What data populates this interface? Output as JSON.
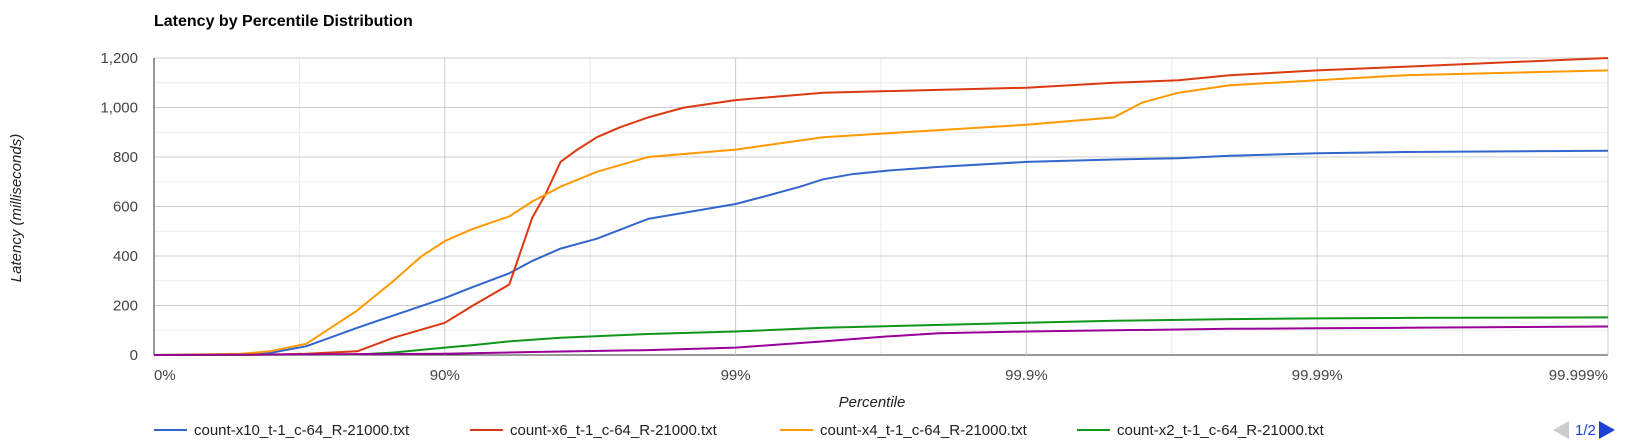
{
  "chart_data": {
    "type": "line",
    "title": "Latency by Percentile Distribution",
    "xlabel": "Percentile",
    "ylabel": "Latency (milliseconds)",
    "x_scale": "log-nines (reciprocal of 1 - percentile)",
    "x_ticks": [
      "0%",
      "90%",
      "99%",
      "99.9%",
      "99.99%",
      "99.999%"
    ],
    "xlim": [
      "0%",
      "99.999%"
    ],
    "y_ticks": [
      "0",
      "200",
      "400",
      "600",
      "800",
      "1,000",
      "1,200"
    ],
    "ylim": [
      0,
      1200
    ],
    "grid": true,
    "legend_position": "bottom",
    "series": [
      {
        "name": "count-x10_t-1_c-64_R-21000.txt",
        "color": "#3366cc",
        "x": [
          "0%",
          "50%",
          "60%",
          "70%",
          "80%",
          "85%",
          "90%",
          "92%",
          "94%",
          "95%",
          "96%",
          "97%",
          "98%",
          "99%",
          "99.2%",
          "99.4%",
          "99.5%",
          "99.6%",
          "99.7%",
          "99.8%",
          "99.9%",
          "99.95%",
          "99.97%",
          "99.98%",
          "99.99%",
          "99.995%",
          "99.999%"
        ],
        "y": [
          0,
          2,
          8,
          35,
          110,
          160,
          230,
          275,
          330,
          380,
          430,
          470,
          550,
          610,
          640,
          680,
          710,
          730,
          745,
          760,
          780,
          790,
          795,
          805,
          815,
          820,
          825
        ]
      },
      {
        "name": "count-x6_t-1_c-64_R-21000.txt",
        "color": "#dc3912",
        "x": [
          "0%",
          "50%",
          "60%",
          "70%",
          "80%",
          "85%",
          "90%",
          "92%",
          "94%",
          "95%",
          "95.5%",
          "96%",
          "96.5%",
          "97%",
          "97.5%",
          "98%",
          "98.5%",
          "99%",
          "99.5%",
          "99.9%",
          "99.95%",
          "99.97%",
          "99.98%",
          "99.99%",
          "99.995%",
          "99.999%"
        ],
        "y": [
          0,
          0,
          2,
          5,
          15,
          70,
          130,
          200,
          285,
          555,
          650,
          780,
          830,
          880,
          920,
          960,
          1000,
          1030,
          1060,
          1080,
          1100,
          1110,
          1130,
          1150,
          1165,
          1200
        ]
      },
      {
        "name": "count-x4_t-1_c-64_R-21000.txt",
        "color": "#ff9900",
        "x": [
          "0%",
          "50%",
          "60%",
          "70%",
          "80%",
          "85%",
          "88%",
          "90%",
          "92%",
          "94%",
          "95%",
          "96%",
          "97%",
          "98%",
          "99%",
          "99.5%",
          "99.9%",
          "99.95%",
          "99.96%",
          "99.97%",
          "99.98%",
          "99.99%",
          "99.995%",
          "99.999%"
        ],
        "y": [
          0,
          5,
          15,
          45,
          180,
          300,
          400,
          460,
          510,
          560,
          620,
          680,
          740,
          800,
          830,
          880,
          930,
          960,
          1020,
          1060,
          1090,
          1110,
          1130,
          1150
        ]
      },
      {
        "name": "count-x2_t-1_c-64_R-21000.txt",
        "color": "#109618",
        "x": [
          "0%",
          "80%",
          "85%",
          "90%",
          "92%",
          "94%",
          "96%",
          "98%",
          "99%",
          "99.5%",
          "99.9%",
          "99.95%",
          "99.97%",
          "99.98%",
          "99.99%",
          "99.995%",
          "99.999%"
        ],
        "y": [
          0,
          2,
          10,
          30,
          40,
          55,
          70,
          85,
          95,
          110,
          130,
          138,
          142,
          145,
          148,
          150,
          152
        ]
      },
      {
        "name": "",
        "color": "#990099",
        "x": [
          "0%",
          "90%",
          "95%",
          "98%",
          "99%",
          "99.5%",
          "99.7%",
          "99.8%",
          "99.9%",
          "99.95%",
          "99.97%",
          "99.98%",
          "99.99%",
          "99.995%",
          "99.999%"
        ],
        "y": [
          0,
          5,
          12,
          20,
          30,
          55,
          75,
          88,
          95,
          100,
          103,
          106,
          108,
          110,
          115
        ]
      }
    ]
  },
  "pager": {
    "text": "1/2"
  },
  "colors": {
    "grid": "#cccccc",
    "minor_grid": "#ebebeb",
    "pager_active": "#1c3fd6",
    "pager_inactive": "#cccccc"
  },
  "icons": {
    "prev": "triangle-left-icon",
    "next": "triangle-right-icon"
  }
}
